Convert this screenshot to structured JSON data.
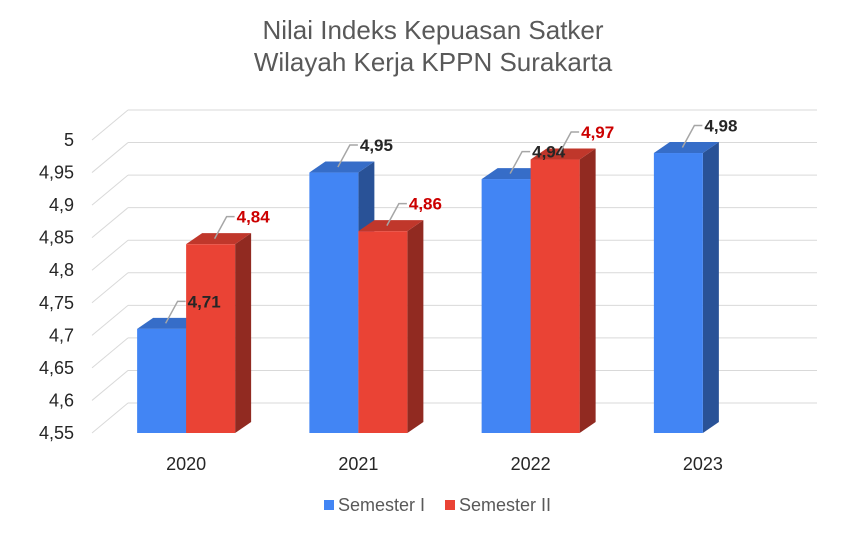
{
  "chart_data": {
    "type": "bar",
    "title_lines": [
      "Nilai Indeks Kepuasan Satker",
      "Wilayah Kerja KPPN Surakarta"
    ],
    "categories": [
      "2020",
      "2021",
      "2022",
      "2023"
    ],
    "series": [
      {
        "name": "Semester I",
        "values": [
          4.71,
          4.95,
          4.94,
          4.98
        ],
        "labels": [
          "4,71",
          "4,95",
          "4,94",
          "4,98"
        ],
        "color": "#4285f4",
        "label_color": "#262626"
      },
      {
        "name": "Semester II",
        "values": [
          4.84,
          4.86,
          4.97,
          null
        ],
        "labels": [
          "4,84",
          "4,86",
          "4,97",
          ""
        ],
        "color": "#ea4335",
        "label_color": "#cc0000"
      }
    ],
    "y_ticks": [
      {
        "value": 4.55,
        "label": "4,55"
      },
      {
        "value": 4.6,
        "label": "4,6"
      },
      {
        "value": 4.65,
        "label": "4,65"
      },
      {
        "value": 4.7,
        "label": "4,7"
      },
      {
        "value": 4.75,
        "label": "4,75"
      },
      {
        "value": 4.8,
        "label": "4,8"
      },
      {
        "value": 4.85,
        "label": "4,85"
      },
      {
        "value": 4.9,
        "label": "4,9"
      },
      {
        "value": 4.95,
        "label": "4,95"
      },
      {
        "value": 5,
        "label": "5"
      }
    ],
    "ylim": [
      4.55,
      5.0
    ],
    "grid": true,
    "legend_position": "bottom",
    "style": "3d-column"
  }
}
